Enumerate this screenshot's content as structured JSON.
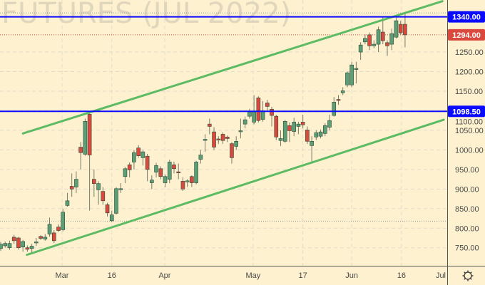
{
  "watermark": "FUTURES (JUL 2022)",
  "colors": {
    "background": "#fdf1cf",
    "up": "#5c9e76",
    "down": "#d9493e",
    "level": "#0a0aff",
    "trend": "#5dbb63",
    "last_price": "#d9493e"
  },
  "chart_data": {
    "type": "candlestick",
    "title": "",
    "ylim": [
      704,
      1383
    ],
    "y_ticks": [
      "750.00",
      "800.00",
      "850.00",
      "900.00",
      "950.00",
      "1000.00",
      "1050.00",
      "1100.00",
      "1150.00",
      "1200.00",
      "1250.00"
    ],
    "x_ticks": [
      "Mar",
      "16",
      "Apr",
      "May",
      "17",
      "Jun",
      "16",
      "Jul"
    ],
    "grid": true,
    "candles_ohlc": [
      [
        748,
        765,
        742,
        759
      ],
      [
        755,
        766,
        750,
        761
      ],
      [
        750,
        768,
        745,
        761
      ],
      [
        777,
        783,
        760,
        768
      ],
      [
        775,
        778,
        745,
        750
      ],
      [
        752,
        770,
        740,
        766
      ],
      [
        750,
        756,
        740,
        746
      ],
      [
        748,
        760,
        735,
        754
      ],
      [
        764,
        775,
        755,
        765
      ],
      [
        779,
        782,
        770,
        774
      ],
      [
        772,
        785,
        768,
        777
      ],
      [
        785,
        827,
        778,
        810
      ],
      [
        788,
        795,
        762,
        768
      ],
      [
        803,
        810,
        790,
        794
      ],
      [
        796,
        850,
        792,
        841
      ],
      [
        858,
        890,
        855,
        870
      ],
      [
        907,
        940,
        880,
        900
      ],
      [
        905,
        945,
        890,
        925
      ],
      [
        1007,
        1020,
        950,
        993
      ],
      [
        989,
        1080,
        985,
        1073
      ],
      [
        1091,
        1095,
        845,
        987
      ],
      [
        925,
        950,
        880,
        914
      ],
      [
        898,
        920,
        860,
        914
      ],
      [
        894,
        905,
        860,
        870
      ],
      [
        860,
        865,
        830,
        839
      ],
      [
        819,
        845,
        815,
        834
      ],
      [
        838,
        905,
        835,
        901
      ],
      [
        900,
        915,
        890,
        901
      ],
      [
        932,
        956,
        915,
        952
      ],
      [
        962,
        968,
        930,
        949
      ],
      [
        969,
        1000,
        950,
        993
      ],
      [
        1005,
        1012,
        980,
        985
      ],
      [
        980,
        1000,
        960,
        995
      ],
      [
        984,
        990,
        920,
        950
      ],
      [
        916,
        935,
        900,
        923
      ],
      [
        943,
        967,
        930,
        960
      ],
      [
        952,
        958,
        925,
        932
      ],
      [
        916,
        937,
        905,
        932
      ],
      [
        925,
        975,
        915,
        969
      ],
      [
        962,
        970,
        940,
        952
      ],
      [
        944,
        965,
        925,
        943
      ],
      [
        920,
        930,
        895,
        900
      ],
      [
        920,
        925,
        905,
        921
      ],
      [
        932,
        935,
        905,
        916
      ],
      [
        916,
        972,
        912,
        969
      ],
      [
        976,
        1000,
        965,
        987
      ],
      [
        1026,
        1040,
        995,
        1027
      ],
      [
        1066,
        1080,
        1040,
        1060
      ],
      [
        1046,
        1058,
        1000,
        1007
      ],
      [
        1028,
        1035,
        1015,
        1027
      ],
      [
        1040,
        1045,
        1015,
        1024
      ],
      [
        1033,
        1037,
        1020,
        1029
      ],
      [
        1016,
        1020,
        965,
        980
      ],
      [
        1009,
        1035,
        1000,
        1022
      ],
      [
        1048,
        1080,
        1030,
        1049
      ],
      [
        1066,
        1085,
        1055,
        1077
      ],
      [
        1086,
        1105,
        1080,
        1097
      ],
      [
        1071,
        1140,
        1065,
        1097
      ],
      [
        1133,
        1137,
        1070,
        1075
      ],
      [
        1078,
        1125,
        1072,
        1100
      ],
      [
        1120,
        1128,
        1100,
        1111
      ],
      [
        1104,
        1110,
        1060,
        1088
      ],
      [
        1086,
        1090,
        1025,
        1033
      ],
      [
        1024,
        1050,
        1010,
        1029
      ],
      [
        1022,
        1077,
        1018,
        1073
      ],
      [
        1062,
        1070,
        1020,
        1049
      ],
      [
        1047,
        1082,
        1035,
        1071
      ],
      [
        1060,
        1072,
        1040,
        1066
      ],
      [
        1071,
        1090,
        1055,
        1064
      ],
      [
        1051,
        1060,
        1015,
        1022
      ],
      [
        1011,
        1035,
        968,
        1022
      ],
      [
        1033,
        1050,
        1025,
        1044
      ],
      [
        1035,
        1052,
        1030,
        1046
      ],
      [
        1042,
        1068,
        1035,
        1062
      ],
      [
        1058,
        1090,
        1050,
        1075
      ],
      [
        1088,
        1135,
        1085,
        1122
      ],
      [
        1129,
        1140,
        1115,
        1128
      ],
      [
        1146,
        1160,
        1140,
        1151
      ],
      [
        1166,
        1200,
        1160,
        1197
      ],
      [
        1166,
        1225,
        1160,
        1217
      ],
      [
        1207,
        1225,
        1170,
        1208
      ],
      [
        1250,
        1275,
        1230,
        1268
      ],
      [
        1276,
        1295,
        1270,
        1285
      ],
      [
        1294,
        1300,
        1255,
        1266
      ],
      [
        1266,
        1280,
        1260,
        1270
      ],
      [
        1270,
        1315,
        1250,
        1307
      ],
      [
        1301,
        1340,
        1270,
        1279
      ],
      [
        1274,
        1280,
        1240,
        1266
      ],
      [
        1270,
        1310,
        1255,
        1297
      ],
      [
        1288,
        1338,
        1285,
        1330
      ],
      [
        1321,
        1330,
        1295,
        1299
      ],
      [
        1321,
        1350,
        1262,
        1294
      ]
    ],
    "horizontal_levels": [
      {
        "label": "1340.00",
        "value": 1340
      },
      {
        "label": "1098.50",
        "value": 1098.5
      }
    ],
    "last_price": {
      "label": "1294.00",
      "value": 1294
    },
    "dotted_levels": [
      1350,
      818
    ],
    "trendlines": [
      {
        "from": [
          5,
          1042
        ],
        "to": [
          99.4,
          1380
        ]
      },
      {
        "from": [
          5.9,
          732
        ],
        "to": [
          99.7,
          1077
        ]
      }
    ]
  },
  "settings_icon": "gear-icon"
}
